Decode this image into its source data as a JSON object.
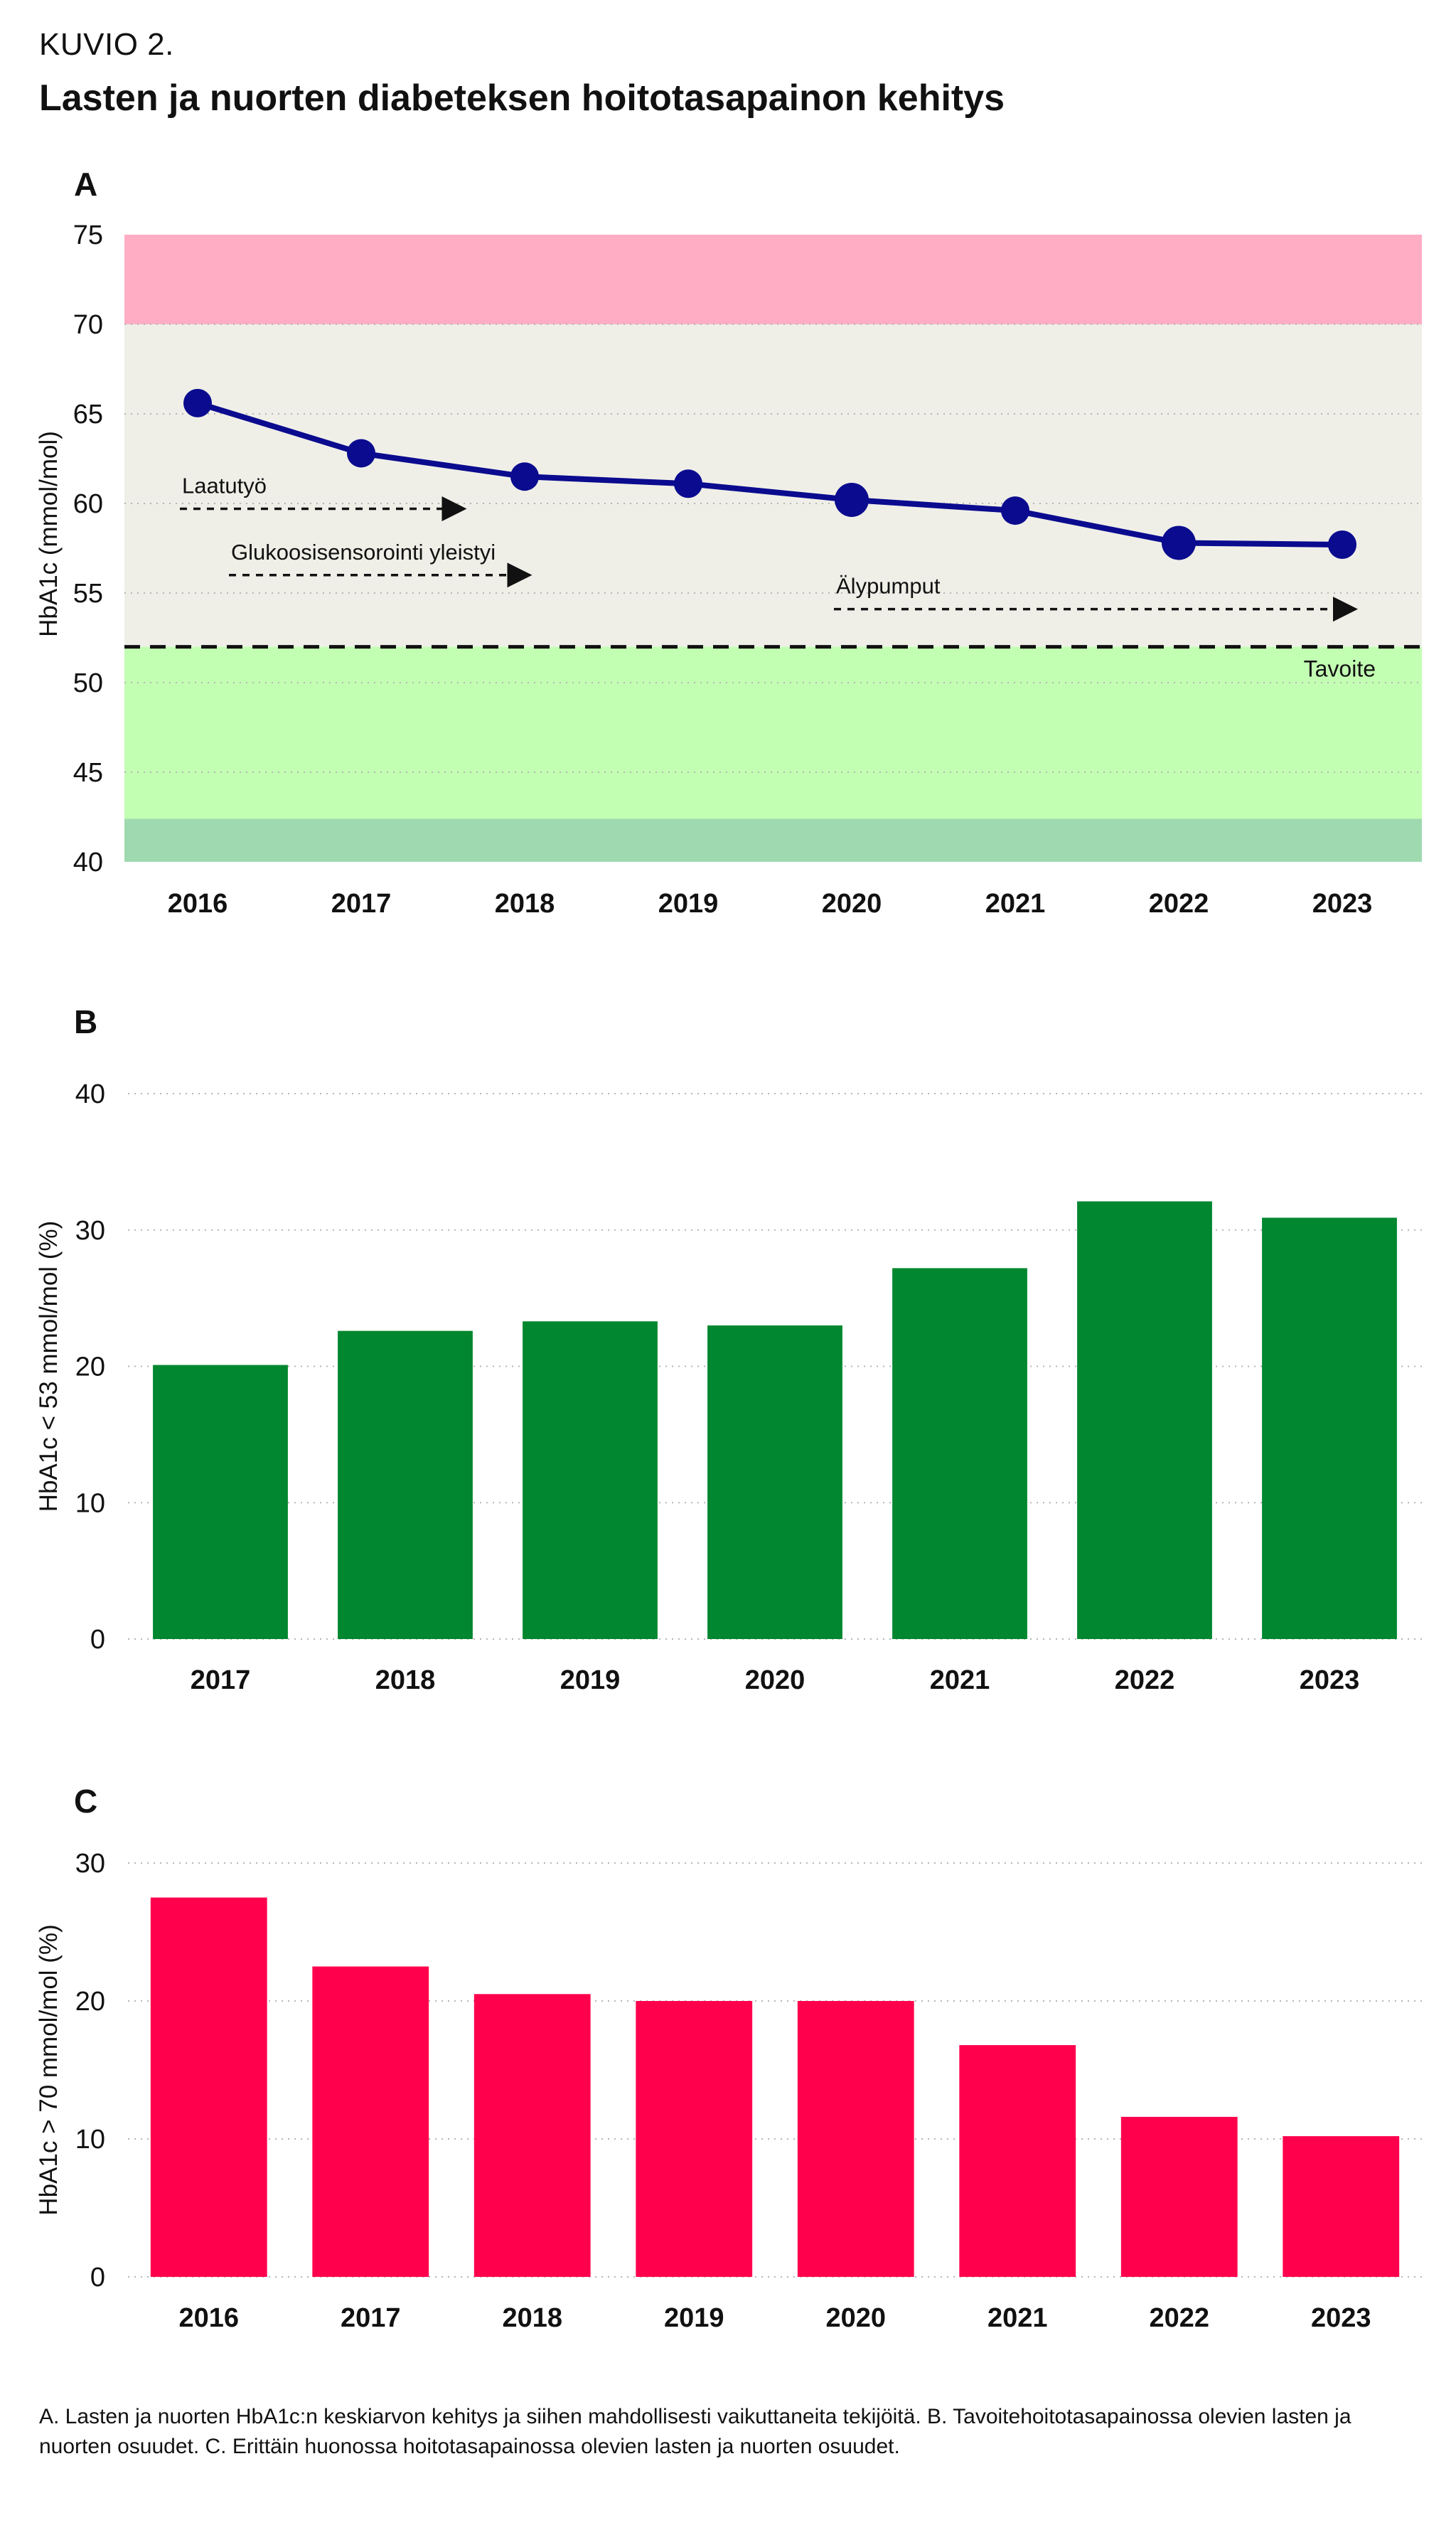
{
  "figure": {
    "label": "KUVIO 2.",
    "title": "Lasten ja nuorten diabeteksen hoitotasapainon kehitys",
    "caption": "A. Lasten ja nuorten HbA1c:n keskiarvon kehitys ja siihen mahdollisesti vaikuttaneita tekijöitä. B. Tavoitehoitotasapainossa olevien lasten ja nuorten osuudet. C. Erittäin huonossa hoitotasapainossa olevien lasten ja nuorten osuudet."
  },
  "colors": {
    "line": "#0b0b8f",
    "band_red": "#ffadc4",
    "band_grey": "#efefe8",
    "band_lightgreen": "#c3ffb3",
    "band_darkgreen": "#9fd9af",
    "bar_green": "#00872f",
    "bar_red": "#ff004d"
  },
  "chart_data": [
    {
      "panel": "A",
      "type": "line",
      "ylabel": "HbA1c (mmol/mol)",
      "ylim": [
        40,
        75
      ],
      "yticks": [
        40,
        45,
        50,
        55,
        60,
        65,
        70,
        75
      ],
      "categories": [
        "2016",
        "2017",
        "2018",
        "2019",
        "2020",
        "2021",
        "2022",
        "2023"
      ],
      "values": [
        65.6,
        62.8,
        61.5,
        61.1,
        60.2,
        59.6,
        57.8,
        57.7
      ],
      "target": {
        "value": 52,
        "label": "Tavoite"
      },
      "bands": [
        {
          "from": 70,
          "to": 75,
          "color": "band_red"
        },
        {
          "from": 52,
          "to": 70,
          "color": "band_grey"
        },
        {
          "from": 42.4,
          "to": 52,
          "color": "band_lightgreen"
        },
        {
          "from": 40,
          "to": 42.4,
          "color": "band_darkgreen"
        }
      ],
      "annotations": [
        {
          "label": "Laatutyö",
          "y": 59.7,
          "from": "2016",
          "to": "2017.6"
        },
        {
          "label": "Glukoosisensorointi yleistyi",
          "y": 56,
          "from": "2016.3",
          "to": "2018"
        },
        {
          "label": "Älypumput",
          "y": 54.1,
          "from": "2020",
          "to": "2023.05"
        }
      ]
    },
    {
      "panel": "B",
      "type": "bar",
      "ylabel": "HbA1c < 53 mmol/mol (%)",
      "ylim": [
        0,
        40
      ],
      "yticks": [
        0,
        10,
        20,
        30,
        40
      ],
      "categories": [
        "2017",
        "2018",
        "2019",
        "2020",
        "2021",
        "2022",
        "2023"
      ],
      "values": [
        20.1,
        22.6,
        23.3,
        23.0,
        27.2,
        32.1,
        30.9
      ]
    },
    {
      "panel": "C",
      "type": "bar",
      "ylabel": "HbA1c > 70 mmol/mol (%)",
      "ylim": [
        0,
        30
      ],
      "yticks": [
        0,
        10,
        20,
        30
      ],
      "categories": [
        "2016",
        "2017",
        "2018",
        "2019",
        "2020",
        "2021",
        "2022",
        "2023"
      ],
      "values": [
        27.5,
        22.5,
        20.5,
        20.0,
        20.0,
        16.8,
        11.6,
        10.2
      ]
    }
  ]
}
